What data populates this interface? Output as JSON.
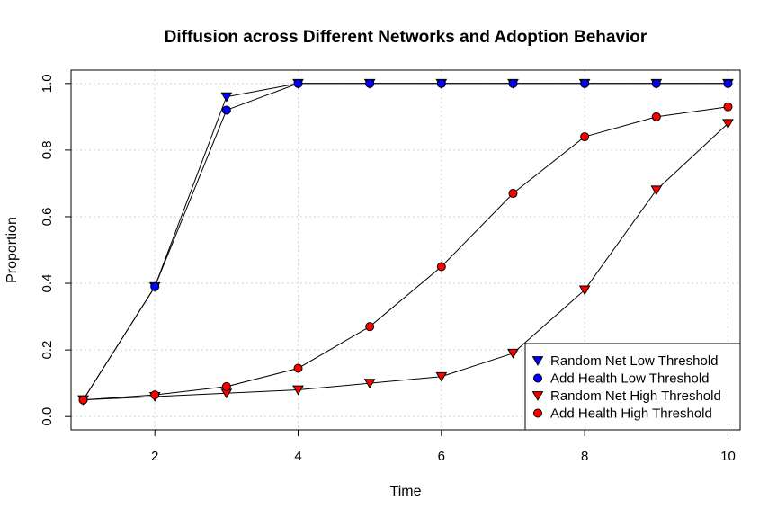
{
  "chart_data": {
    "type": "line",
    "title": "Diffusion across Different Networks and Adoption Behavior",
    "xlabel": "Time",
    "ylabel": "Proportion",
    "xlim": [
      0.83,
      10.17
    ],
    "ylim": [
      -0.04,
      1.04
    ],
    "xticks": [
      2,
      4,
      6,
      8,
      10
    ],
    "yticks": [
      0.0,
      0.2,
      0.4,
      0.6,
      0.8,
      1.0
    ],
    "ytick_labels": [
      "0.0",
      "0.2",
      "0.4",
      "0.6",
      "0.8",
      "1.0"
    ],
    "grid": true,
    "legend_position": "bottom-right",
    "x": [
      1,
      2,
      3,
      4,
      5,
      6,
      7,
      8,
      9,
      10
    ],
    "series": [
      {
        "name": "Random Net Low Threshold",
        "marker": "triangle-down",
        "color": "#0000ff",
        "values": [
          0.05,
          0.39,
          0.96,
          1.0,
          1.0,
          1.0,
          1.0,
          1.0,
          1.0,
          1.0
        ]
      },
      {
        "name": "Add Health Low Threshold",
        "marker": "circle",
        "color": "#0000ff",
        "values": [
          0.05,
          0.39,
          0.92,
          1.0,
          1.0,
          1.0,
          1.0,
          1.0,
          1.0,
          1.0
        ]
      },
      {
        "name": "Random Net High Threshold",
        "marker": "triangle-down",
        "color": "#ff0000",
        "values": [
          0.05,
          0.06,
          0.07,
          0.08,
          0.1,
          0.12,
          0.19,
          0.38,
          0.68,
          0.88
        ]
      },
      {
        "name": "Add Health High Threshold",
        "marker": "circle",
        "color": "#ff0000",
        "values": [
          0.05,
          0.065,
          0.09,
          0.145,
          0.27,
          0.45,
          0.67,
          0.84,
          0.9,
          0.93
        ]
      }
    ]
  }
}
